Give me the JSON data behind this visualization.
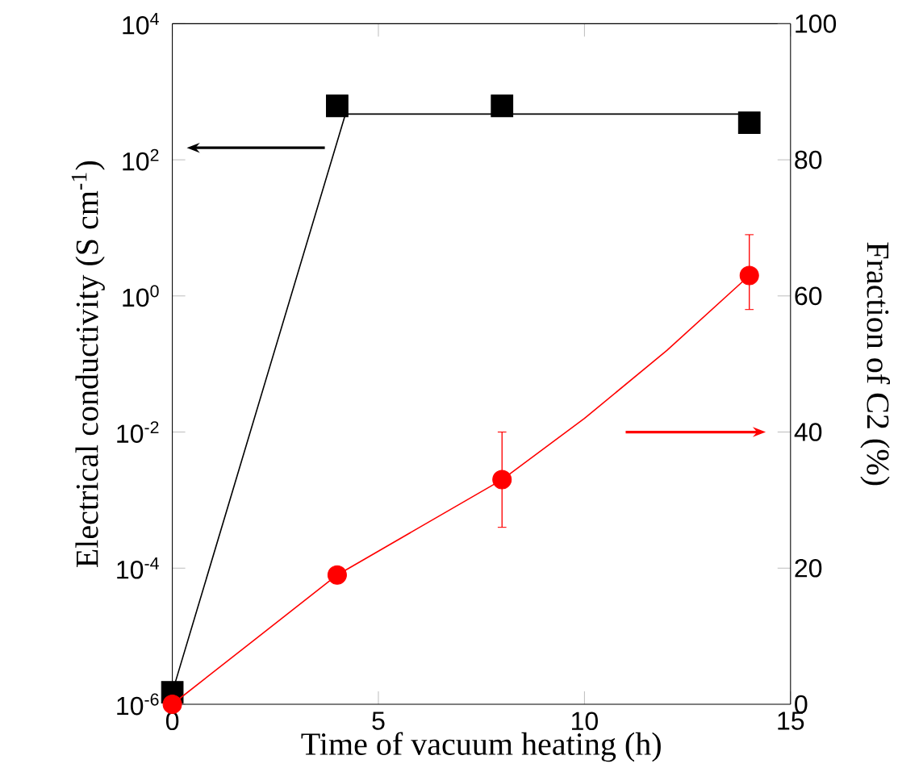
{
  "chart_data": {
    "type": "scatter",
    "xlabel": "Time of vacuum heating (h)",
    "ylabel": "Electrical conductivity (S cm$^{-1}$)",
    "y2label": "Fraction of C2 (%)",
    "x": [
      0,
      4,
      8,
      14
    ],
    "xlim": [
      0,
      15
    ],
    "xticks": [
      0,
      5,
      10,
      15
    ],
    "log": "y",
    "ylim": [
      1e-06,
      10000.0
    ],
    "yticks": [
      {
        "value": 1e-06,
        "label": "10$^{-6}$"
      },
      {
        "value": 0.0001,
        "label": "10$^{-4}$"
      },
      {
        "value": 0.01,
        "label": "10$^{-2}$"
      },
      {
        "value": 1,
        "label": "10$^{0}$"
      },
      {
        "value": 100,
        "label": "10$^{2}$"
      },
      {
        "value": 10000,
        "label": "10$^{4}$"
      }
    ],
    "y2lim": [
      0,
      100
    ],
    "y2ticks": [
      0,
      20,
      40,
      60,
      80,
      100
    ],
    "series": [
      {
        "color": "#000000",
        "marker": "square",
        "values": [
          1.5e-06,
          620,
          620,
          350
        ]
      },
      {
        "type": "line",
        "color": "#000000",
        "marker": "none",
        "x": [
          0,
          4.2,
          14
        ],
        "values": [
          1.5e-06,
          470,
          470
        ]
      },
      {
        "axis": "y2",
        "color": "#ff0000",
        "marker": "circle",
        "values": [
          0,
          19,
          33,
          63
        ],
        "errors": [
          null,
          null,
          [
            26,
            40
          ],
          [
            58,
            69
          ]
        ]
      },
      {
        "type": "line",
        "axis": "y2",
        "color": "#ff0000",
        "marker": "none",
        "x": [
          0,
          2,
          4,
          6,
          8,
          10,
          12,
          14
        ],
        "values": [
          0,
          9.5,
          19,
          26,
          33,
          42,
          52,
          63
        ]
      }
    ]
  }
}
